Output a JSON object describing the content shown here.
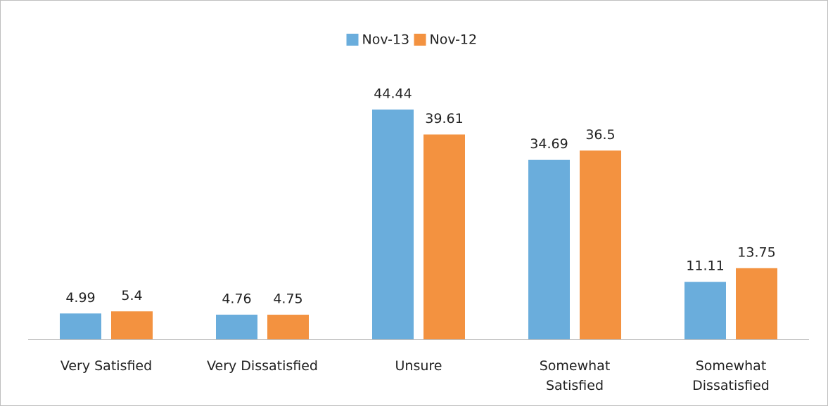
{
  "chart_data": {
    "type": "bar",
    "categories": [
      "Very Satisfied",
      "Very Dissatisfied",
      "Unsure",
      "Somewhat Satisfied",
      "Somewhat Dissatisfied"
    ],
    "series": [
      {
        "name": "Nov-13",
        "color": "#6aaddc",
        "values": [
          4.99,
          4.76,
          44.44,
          34.69,
          11.11
        ]
      },
      {
        "name": "Nov-12",
        "color": "#f39240",
        "values": [
          5.4,
          4.75,
          39.61,
          36.5,
          13.75
        ]
      }
    ],
    "legend": "top"
  }
}
